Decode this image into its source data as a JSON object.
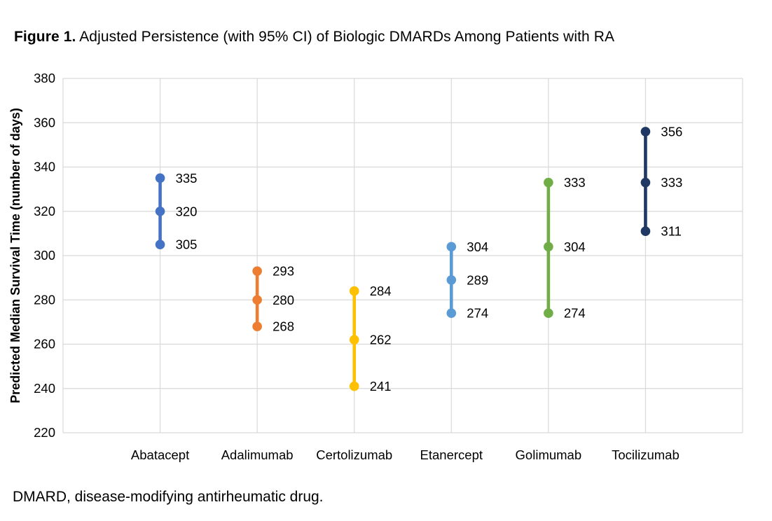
{
  "page": {
    "title_prefix": "Figure 1.",
    "title_rest": " Adjusted Persistence (with 95% CI) of Biologic DMARDs Among Patients with RA",
    "footnote": "DMARD, disease-modifying antirheumatic drug."
  },
  "chart_data": {
    "type": "scatter",
    "subtype": "median-with-95CI-range",
    "title": "Figure 1. Adjusted Persistence (with 95% CI) of Biologic DMARDs Among Patients with RA",
    "xlabel": "",
    "ylabel": "Predicted Median Survival Time (number of days)",
    "ylim": [
      220,
      380
    ],
    "yticks": [
      220,
      240,
      260,
      280,
      300,
      320,
      340,
      360,
      380
    ],
    "grid": true,
    "legend_position": "none",
    "gridline_color": "#D9D9D9",
    "label_color": "#000000",
    "categories": [
      "Abatacept",
      "Adalimumab",
      "Certolizumab",
      "Etanercept",
      "Golimumab",
      "Tocilizumab"
    ],
    "series": [
      {
        "name": "Abatacept",
        "color": "#4472C4",
        "ci_low": 305,
        "median": 320,
        "ci_high": 335
      },
      {
        "name": "Adalimumab",
        "color": "#ED7D31",
        "ci_low": 268,
        "median": 280,
        "ci_high": 293
      },
      {
        "name": "Certolizumab",
        "color": "#FFC000",
        "ci_low": 241,
        "median": 262,
        "ci_high": 284
      },
      {
        "name": "Etanercept",
        "color": "#5B9BD5",
        "ci_low": 274,
        "median": 289,
        "ci_high": 304
      },
      {
        "name": "Golimumab",
        "color": "#70AD47",
        "ci_low": 274,
        "median": 304,
        "ci_high": 333
      },
      {
        "name": "Tocilizumab",
        "color": "#1F3864",
        "ci_low": 311,
        "median": 333,
        "ci_high": 356
      }
    ]
  }
}
